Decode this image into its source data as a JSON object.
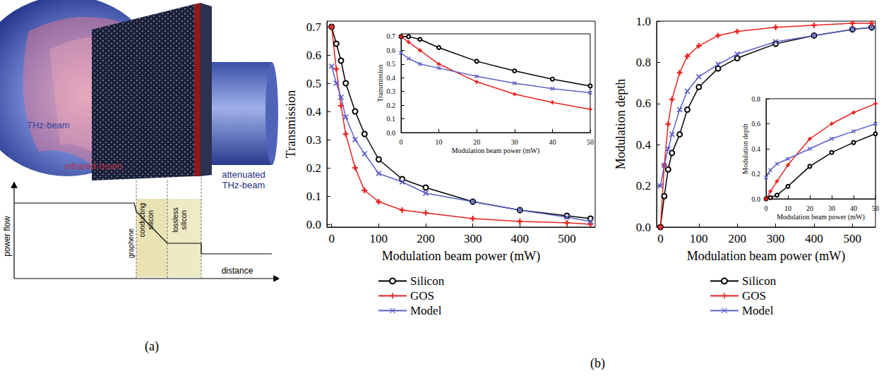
{
  "panels": [
    "(a)",
    "(b)"
  ],
  "diagram": {
    "beam_in": "THz-beam",
    "pump": "infrared-beam",
    "beam_out": "attenuated THz-beam",
    "y_axis": "power flow",
    "x_axis": "distance",
    "layers": [
      "graphene",
      "conducting silicon",
      "lossless silicon"
    ]
  },
  "chart_data": [
    {
      "type": "line",
      "x_label": "Modulation beam power (mW)",
      "y_label": "Transmission",
      "x": [
        0,
        10,
        20,
        30,
        50,
        70,
        100,
        150,
        200,
        300,
        400,
        500,
        550
      ],
      "xlim": [
        -10,
        560
      ],
      "xticks": [
        0,
        100,
        200,
        300,
        400,
        500
      ],
      "ylim": [
        -0.01,
        0.72
      ],
      "yticks": [
        {
          "value": 0,
          "label": "0.0"
        },
        0.1,
        0.2,
        0.3,
        0.4,
        0.5,
        0.6,
        0.7
      ],
      "grid": false,
      "legend": "bottom",
      "series": [
        {
          "name": "Silicon",
          "color": "#000000",
          "marker": "circle",
          "values": [
            0.7,
            0.64,
            0.58,
            0.5,
            0.4,
            0.32,
            0.23,
            0.16,
            0.13,
            0.08,
            0.05,
            0.03,
            0.02
          ]
        },
        {
          "name": "GOS",
          "color": "#e8231f",
          "marker": "plus",
          "values": [
            0.7,
            0.55,
            0.42,
            0.32,
            0.2,
            0.12,
            0.08,
            0.05,
            0.04,
            0.02,
            0.01,
            0.005,
            0.0
          ]
        },
        {
          "name": "Model",
          "color": "#5b5fc7",
          "marker": "x",
          "values": [
            0.56,
            0.5,
            0.45,
            0.38,
            0.3,
            0.25,
            0.18,
            0.15,
            0.11,
            0.08,
            0.05,
            0.025,
            0.01
          ]
        }
      ]
    },
    {
      "type": "line",
      "x_label": "Modulation beam power (mW)",
      "y_label": "Transmission",
      "x": [
        0,
        2,
        5,
        10,
        20,
        30,
        40,
        50
      ],
      "xlim": [
        0,
        50
      ],
      "xticks": [
        0,
        10,
        20,
        30,
        40,
        50
      ],
      "ylim": [
        0,
        0.72
      ],
      "yticks": [
        {
          "value": 0,
          "label": "0.0"
        },
        0.1,
        0.2,
        0.3,
        0.4,
        0.5,
        0.6,
        0.7
      ],
      "grid": false,
      "series": [
        {
          "name": "Silicon",
          "color": "#000000",
          "marker": "circle",
          "values": [
            0.7,
            0.7,
            0.68,
            0.62,
            0.52,
            0.45,
            0.39,
            0.34
          ]
        },
        {
          "name": "GOS",
          "color": "#e8231f",
          "marker": "plus",
          "values": [
            0.7,
            0.66,
            0.6,
            0.5,
            0.37,
            0.28,
            0.22,
            0.17
          ]
        },
        {
          "name": "Model",
          "color": "#5b5fc7",
          "marker": "x",
          "values": [
            0.58,
            0.54,
            0.5,
            0.47,
            0.41,
            0.36,
            0.32,
            0.29
          ]
        }
      ]
    },
    {
      "type": "line",
      "x_label": "Modulation beam power (mW)",
      "y_label": "Modulation depth",
      "x": [
        0,
        10,
        20,
        30,
        50,
        70,
        100,
        150,
        200,
        300,
        400,
        500,
        550
      ],
      "xlim": [
        -10,
        560
      ],
      "xticks": [
        0,
        100,
        200,
        300,
        400,
        500
      ],
      "ylim": [
        0,
        1.0
      ],
      "yticks": [
        {
          "value": 0,
          "label": "0.0"
        },
        0.2,
        0.4,
        0.6,
        0.8,
        {
          "value": 1,
          "label": "1.0"
        }
      ],
      "grid": false,
      "legend": "bottom",
      "series": [
        {
          "name": "Silicon",
          "color": "#000000",
          "marker": "circle",
          "values": [
            0,
            0.15,
            0.28,
            0.36,
            0.45,
            0.57,
            0.68,
            0.77,
            0.82,
            0.89,
            0.93,
            0.96,
            0.97
          ]
        },
        {
          "name": "GOS",
          "color": "#e8231f",
          "marker": "plus",
          "values": [
            0,
            0.3,
            0.5,
            0.62,
            0.75,
            0.83,
            0.88,
            0.93,
            0.95,
            0.97,
            0.98,
            0.99,
            0.99
          ]
        },
        {
          "name": "Model",
          "color": "#5b5fc7",
          "marker": "x",
          "values": [
            0.2,
            0.3,
            0.38,
            0.45,
            0.57,
            0.66,
            0.73,
            0.79,
            0.84,
            0.9,
            0.93,
            0.96,
            0.97
          ]
        }
      ]
    },
    {
      "type": "line",
      "x_label": "Modulation beam power (mW)",
      "y_label": "Modulation depth",
      "x": [
        0,
        2,
        5,
        10,
        20,
        30,
        40,
        50
      ],
      "xlim": [
        0,
        50
      ],
      "xticks": [
        0,
        10,
        20,
        30,
        40,
        50
      ],
      "ylim": [
        0,
        0.8
      ],
      "yticks": [
        {
          "value": 0,
          "label": "0.0"
        },
        0.2,
        0.4,
        0.6,
        0.8
      ],
      "grid": false,
      "series": [
        {
          "name": "Silicon",
          "color": "#000000",
          "marker": "circle",
          "values": [
            0,
            0.01,
            0.03,
            0.1,
            0.26,
            0.37,
            0.45,
            0.52
          ]
        },
        {
          "name": "GOS",
          "color": "#e8231f",
          "marker": "plus",
          "values": [
            0,
            0.06,
            0.14,
            0.27,
            0.48,
            0.6,
            0.69,
            0.76
          ]
        },
        {
          "name": "Model",
          "color": "#5b5fc7",
          "marker": "x",
          "values": [
            0.17,
            0.23,
            0.28,
            0.32,
            0.4,
            0.48,
            0.54,
            0.6
          ]
        }
      ]
    }
  ]
}
